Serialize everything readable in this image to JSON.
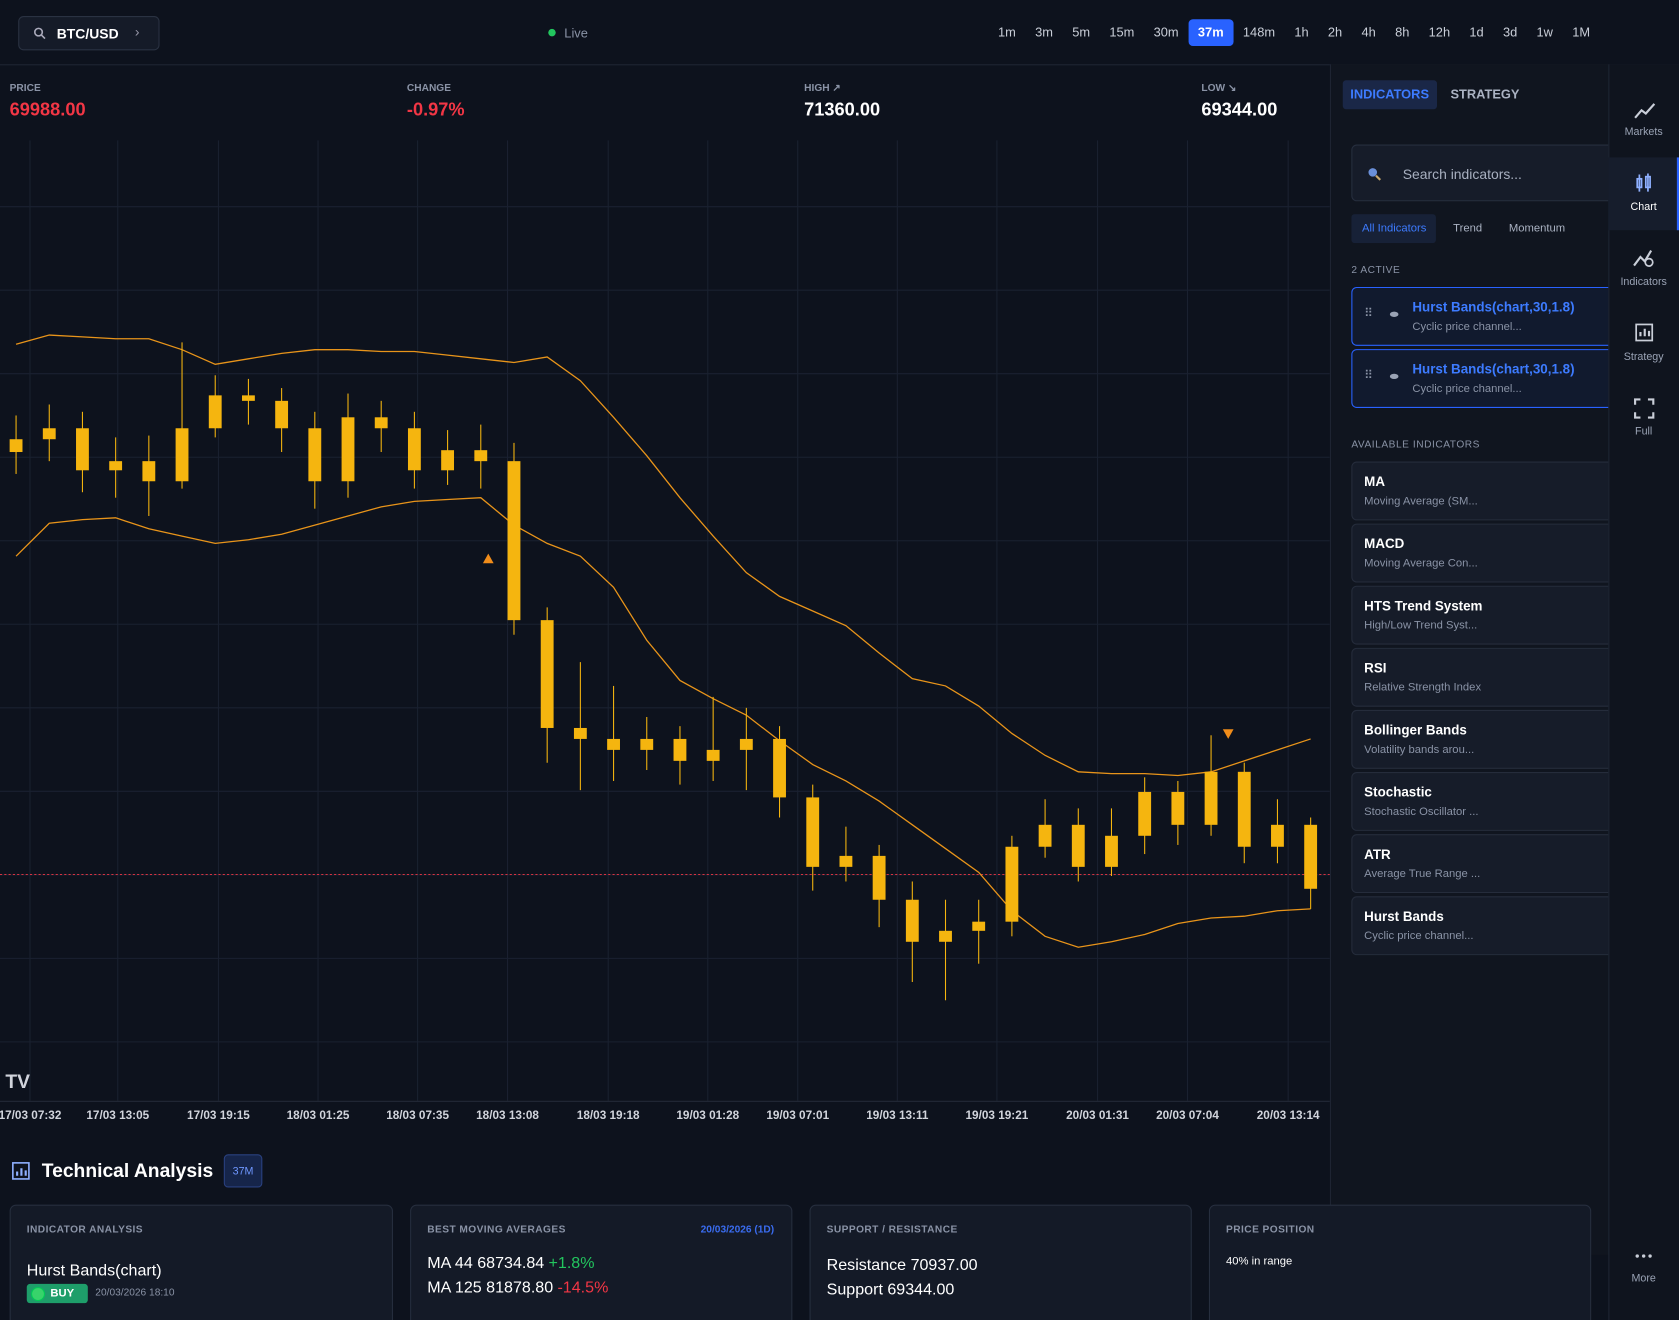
{
  "topbar": {
    "symbol": "BTC/USD",
    "status": "Live",
    "timeframes": [
      "1m",
      "3m",
      "5m",
      "15m",
      "30m",
      "37m",
      "148m",
      "1h",
      "2h",
      "4h",
      "8h",
      "12h",
      "1d",
      "3d",
      "1w",
      "1M"
    ],
    "active_timeframe": 5
  },
  "stats": [
    {
      "label": "PRICE",
      "value": "69988.00",
      "color": "#f23645"
    },
    {
      "label": "CHANGE",
      "value": "-0.97%",
      "color": "#f23645"
    },
    {
      "label": "HIGH ↗",
      "value": "71360.00",
      "color": "#ffffff"
    },
    {
      "label": "LOW ↘",
      "value": "69344.00",
      "color": "#ffffff"
    }
  ],
  "chart": {
    "type": "candlestick",
    "color": "#f5b50f",
    "band_color": "#e8941a",
    "price_line_color": "#f23645",
    "open": [
      72300,
      72370,
      72430,
      72200,
      72250,
      72140,
      72430,
      72610,
      72580,
      72430,
      72140,
      72490,
      72430,
      72200,
      72310,
      72250,
      71380,
      70790,
      70730,
      70670,
      70730,
      70610,
      70670,
      70730,
      70410,
      70030,
      70090,
      69850,
      69620,
      69680,
      69730,
      70140,
      70260,
      70030,
      70200,
      70440,
      70260,
      70550,
      70140,
      70260
    ],
    "close": [
      72370,
      72430,
      72200,
      72250,
      72140,
      72430,
      72610,
      72580,
      72430,
      72140,
      72490,
      72430,
      72200,
      72310,
      72250,
      71380,
      70790,
      70730,
      70670,
      70730,
      70610,
      70670,
      70730,
      70410,
      70030,
      70090,
      69850,
      69620,
      69680,
      69730,
      70140,
      70260,
      70030,
      70200,
      70440,
      70260,
      70550,
      70140,
      70260,
      69910
    ],
    "high": [
      72500,
      72560,
      72520,
      72380,
      72390,
      72900,
      72720,
      72700,
      72650,
      72520,
      72620,
      72580,
      72520,
      72420,
      72450,
      72350,
      71450,
      71150,
      71020,
      70850,
      70800,
      70960,
      70900,
      70800,
      70480,
      70250,
      70150,
      69950,
      69850,
      69850,
      70200,
      70400,
      70350,
      70350,
      70520,
      70500,
      70750,
      70600,
      70400,
      70300
    ],
    "low": [
      72180,
      72250,
      72080,
      72050,
      71950,
      72100,
      72380,
      72450,
      72300,
      71990,
      72050,
      72300,
      72100,
      72120,
      72100,
      71300,
      70600,
      70450,
      70500,
      70560,
      70480,
      70500,
      70450,
      70300,
      69900,
      69950,
      69700,
      69400,
      69300,
      69500,
      69650,
      70080,
      69950,
      69980,
      70100,
      70150,
      70200,
      70050,
      70050,
      69800
    ],
    "upper_band": [
      72890,
      72940,
      72930,
      72920,
      72920,
      72860,
      72780,
      72810,
      72840,
      72860,
      72860,
      72850,
      72850,
      72830,
      72810,
      72790,
      72820,
      72690,
      72490,
      72280,
      72050,
      71840,
      71640,
      71510,
      71430,
      71350,
      71200,
      71060,
      71020,
      70910,
      70760,
      70640,
      70550,
      70540,
      70540,
      70530,
      70550,
      70610,
      70670,
      70730
    ],
    "lower_band": [
      71730,
      71910,
      71930,
      71940,
      71880,
      71840,
      71800,
      71820,
      71850,
      71900,
      71950,
      72000,
      72030,
      72040,
      72050,
      71900,
      71800,
      71730,
      71560,
      71270,
      71050,
      70950,
      70860,
      70720,
      70590,
      70500,
      70390,
      70260,
      70130,
      70000,
      69790,
      69650,
      69590,
      69620,
      69660,
      69720,
      69750,
      69760,
      69790,
      69800
    ],
    "ylim": [
      68750,
      74000
    ],
    "last_price": 69988,
    "x_labels": [
      "17/03 07:32",
      "17/03 13:05",
      "17/03 19:15",
      "18/03 01:25",
      "18/03 07:35",
      "18/03 13:08",
      "18/03 19:18",
      "19/03 01:28",
      "19/03 07:01",
      "19/03 13:11",
      "19/03 19:21",
      "20/03 01:31",
      "20/03 07:04",
      "20/03 13:14"
    ]
  },
  "panel": {
    "tabs": [
      "INDICATORS",
      "STRATEGY"
    ],
    "search_placeholder": "Search indicators...",
    "filters": [
      "All Indicators",
      "Trend",
      "Momentum"
    ],
    "active_label": "2 ACTIVE",
    "active": [
      {
        "name": "Hurst Bands(chart,30,1.8)",
        "desc": "Cyclic price channel..."
      },
      {
        "name": "Hurst Bands(chart,30,1.8)",
        "desc": "Cyclic price channel..."
      }
    ],
    "available_label": "AVAILABLE INDICATORS",
    "available": [
      {
        "name": "MA",
        "desc": "Moving Average (SM..."
      },
      {
        "name": "MACD",
        "desc": "Moving Average Con..."
      },
      {
        "name": "HTS Trend System",
        "desc": "High/Low Trend Syst..."
      },
      {
        "name": "RSI",
        "desc": "Relative Strength Index"
      },
      {
        "name": "Bollinger Bands",
        "desc": "Volatility bands arou..."
      },
      {
        "name": "Stochastic",
        "desc": "Stochastic Oscillator ..."
      },
      {
        "name": "ATR",
        "desc": "Average True Range ..."
      },
      {
        "name": "Hurst Bands",
        "desc": "Cyclic price channel..."
      }
    ]
  },
  "sidebar": [
    "Markets",
    "Chart",
    "Indicators",
    "Strategy",
    "Full",
    "More"
  ],
  "analysis": {
    "title": "Technical Analysis",
    "badge": "37M",
    "indicator": {
      "heading": "INDICATOR ANALYSIS",
      "name": "Hurst Bands(chart)",
      "signal": "BUY",
      "time": "20/03/2026 18:10"
    },
    "moving_averages": {
      "heading": "BEST MOVING AVERAGES",
      "date": "20/03/2026 (1D)",
      "rows": [
        {
          "label": "MA 44 68734.84",
          "change": "+1.8%"
        },
        {
          "label": "MA 125 81878.80",
          "change": "-14.5%"
        }
      ]
    },
    "levels": {
      "heading": "SUPPORT / RESISTANCE",
      "resistance": "Resistance 70937.00",
      "support": "Support 69344.00"
    },
    "position": {
      "heading": "PRICE POSITION",
      "text": "40% in range"
    }
  }
}
